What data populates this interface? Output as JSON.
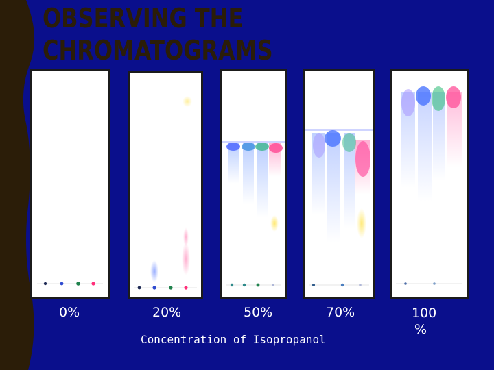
{
  "slide": {
    "title_line1": "OBSERVING THE",
    "title_line2": "CHROMATOGRAMS",
    "axis_title": "Concentration of Isopropanol",
    "strips": [
      {
        "label": "0%"
      },
      {
        "label": "20%"
      },
      {
        "label": "50%"
      },
      {
        "label": "70%"
      },
      {
        "label_line1": "100",
        "label_line2": "%"
      }
    ],
    "colors": {
      "background": "#0a0f8c",
      "left_band": "#2b1d08",
      "title": "#2b1d08",
      "text": "#ffffff",
      "ink_blue": "#3a5bff",
      "ink_green": "#2aa85a",
      "ink_pink": "#ff3f86",
      "ink_purple": "#8a7dff",
      "ink_yellow": "#ffe24a"
    }
  }
}
